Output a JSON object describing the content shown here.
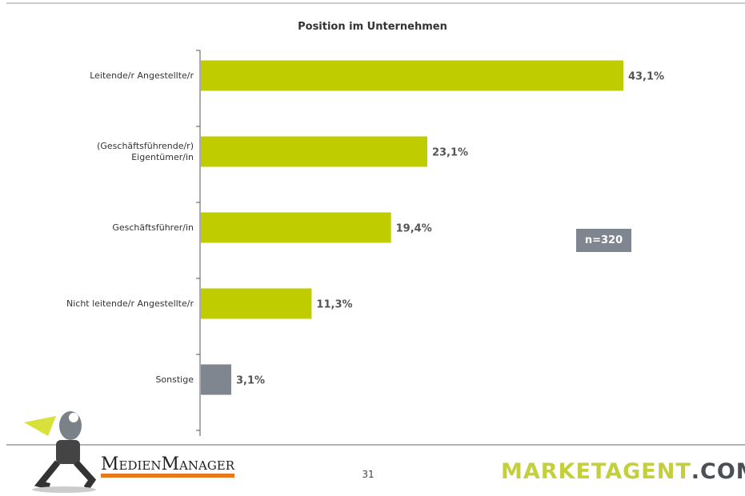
{
  "chart_data": {
    "type": "bar",
    "orientation": "horizontal",
    "title": "Position im Unternehmen",
    "categories": [
      "Leitende/r Angestellte/r",
      "(Geschäftsführende/r)\nEigentümer/in",
      "Geschäftsführer/in",
      "Nicht leitende/r Angestellte/r",
      "Sonstige"
    ],
    "values": [
      43.1,
      23.1,
      19.4,
      11.3,
      3.1
    ],
    "value_labels": [
      "43,1%",
      "23,1%",
      "19,4%",
      "11,3%",
      "3,1%"
    ],
    "colors": [
      "#bfcd00",
      "#bfcd00",
      "#bfcd00",
      "#bfcd00",
      "#7f8690"
    ],
    "annotation": "n=320"
  },
  "footer": {
    "page": "31",
    "logo_left": "MedienManager",
    "logo_right_main": "MARKETAGENT",
    "logo_right_suffix": ".COM"
  }
}
